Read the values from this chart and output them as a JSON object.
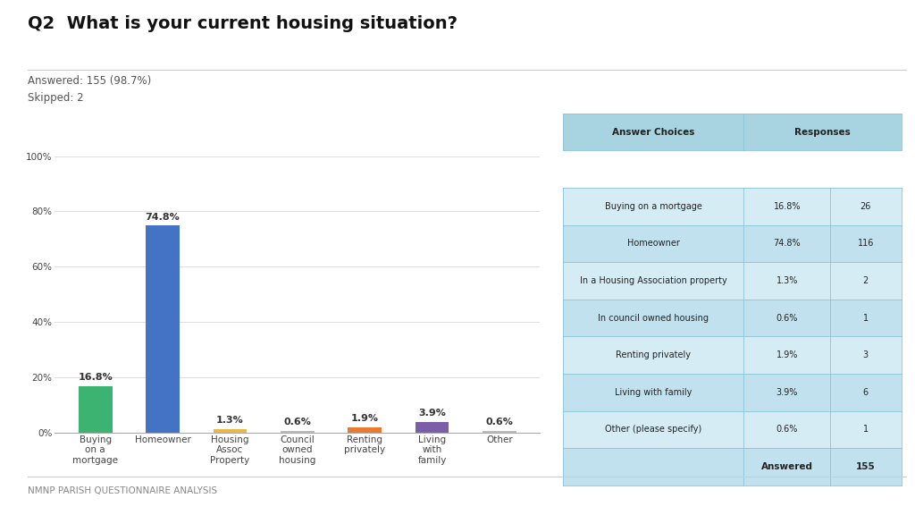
{
  "title": "Q2  What is your current housing situation?",
  "answered_text": "Answered: 155 (98.7%)",
  "skipped_text": "Skipped: 2",
  "footer_text": "NMNP PARISH QUESTIONNAIRE ANALYSIS",
  "categories": [
    "Buying\non a\nmortgage",
    "Homeowner",
    "Housing\nAssoc\nProperty",
    "Council\nowned\nhousing",
    "Renting\nprivately",
    "Living\nwith\nfamily",
    "Other"
  ],
  "values": [
    16.8,
    74.8,
    1.3,
    0.6,
    1.9,
    3.9,
    0.6
  ],
  "bar_colors": [
    "#3cb371",
    "#4472c4",
    "#e8b84b",
    "#bbbbbb",
    "#e87b2f",
    "#7b5ea7",
    "#bbbbbb"
  ],
  "value_labels": [
    "16.8%",
    "74.8%",
    "1.3%",
    "0.6%",
    "1.9%",
    "3.9%",
    "0.6%"
  ],
  "yticks": [
    0,
    20,
    40,
    60,
    80,
    100
  ],
  "ytick_labels": [
    "0%",
    "20%",
    "40%",
    "60%",
    "80%",
    "100%"
  ],
  "ylim": [
    0,
    108
  ],
  "background_color": "#ffffff",
  "table_header_color": "#a8d4e2",
  "table_row_color_0": "#d6ecf4",
  "table_row_color_1": "#c2e1ee",
  "table_choices": [
    "Buying on a mortgage",
    "Homeowner",
    "In a Housing Association property",
    "In council owned housing",
    "Renting privately",
    "Living with family",
    "Other (please specify)"
  ],
  "table_pct": [
    "16.8%",
    "74.8%",
    "1.3%",
    "0.6%",
    "1.9%",
    "3.9%",
    "0.6%"
  ],
  "table_count": [
    "26",
    "116",
    "2",
    "1",
    "3",
    "6",
    "1"
  ],
  "table_answered": "Answered",
  "table_answered_count": "155",
  "title_fontsize": 14,
  "subtitle_fontsize": 8.5,
  "bar_label_fontsize": 8,
  "axis_fontsize": 7.5,
  "table_fontsize": 7.5
}
